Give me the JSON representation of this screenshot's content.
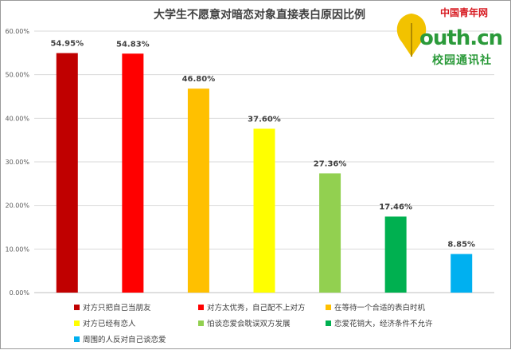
{
  "chart_data": {
    "type": "bar",
    "title": "大学生不愿意对暗恋对象直接表白原因比例",
    "categories": [
      "对方只把自己当朋友",
      "对方太优秀，自己配不上对方",
      "在等待一个合适的表白时机",
      "对方已经有恋人",
      "怕谈恋爱会耽误双方发展",
      "恋爱花销大，经济条件不允许",
      "周围的人反对自己谈恋爱"
    ],
    "values": [
      54.95,
      54.83,
      46.8,
      37.6,
      27.36,
      17.46,
      8.85
    ],
    "value_labels": [
      "54.95%",
      "54.83%",
      "46.80%",
      "37.60%",
      "27.36%",
      "17.46%",
      "8.85%"
    ],
    "colors": [
      "#c00000",
      "#ff0000",
      "#ffc000",
      "#ffff00",
      "#92d050",
      "#00b050",
      "#00b0f0"
    ],
    "ylim": [
      0,
      60
    ],
    "yticks": [
      "0.00%",
      "10.00%",
      "20.00%",
      "30.00%",
      "40.00%",
      "50.00%",
      "60.00%"
    ],
    "grid": true,
    "legend_position": "bottom"
  },
  "watermark": {
    "brand_cn": "中国青年网",
    "brand_en": "outh.cn",
    "brand_sub": "校园通讯社",
    "brand_color": "#2b9a3a"
  }
}
